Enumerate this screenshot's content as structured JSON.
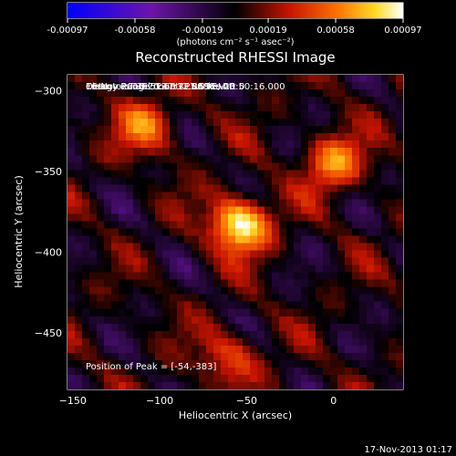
{
  "colorbar": {
    "ticks": [
      "-0.00097",
      "-0.00058",
      "-0.00019",
      "0.00019",
      "0.00058",
      "0.00097"
    ],
    "unit_label": "(photons cm⁻² s⁻¹ asec⁻²)"
  },
  "chart_data": {
    "type": "heatmap",
    "title": "Reconstructed RHESSI Image",
    "xlabel": "Heliocentric X (arcsec)",
    "ylabel": "Heliocentric Y (arcsec)",
    "xlim": [
      -153,
      40
    ],
    "ylim": [
      -485,
      -290
    ],
    "xticks": [
      -150,
      -100,
      -50,
      0
    ],
    "xtick_labels": [
      "−150",
      "−100",
      "−50",
      "0"
    ],
    "yticks": [
      -300,
      -350,
      -400,
      -450
    ],
    "ytick_labels": [
      "−300",
      "−350",
      "−400",
      "−450"
    ],
    "colormap": "red-temperature (diverging, blue-purple to white)",
    "value_range": [
      -0.00097,
      0.00097
    ],
    "peak": [
      -54,
      -383
    ],
    "sources": [
      {
        "x": -54,
        "y": -383,
        "intensity": 1.0
      },
      {
        "x": -108,
        "y": -322,
        "intensity": 0.55
      },
      {
        "x": 0,
        "y": -345,
        "intensity": 0.65
      },
      {
        "x": -60,
        "y": -465,
        "intensity": 0.45
      }
    ],
    "annotations": [
      "16-Nov-2013 20:47:12.000 to 20:50:16.000",
      "Detectors: 3F 5F 6F 7F 8F 9F, Att 0",
      "Energy Range: 12.0 - 25.0 keV",
      "Clean      Total counts: 7.59E+03"
    ],
    "peak_label": "Position of Peak = [-54,-383]"
  },
  "footer_date": "17-Nov-2013 01:17"
}
